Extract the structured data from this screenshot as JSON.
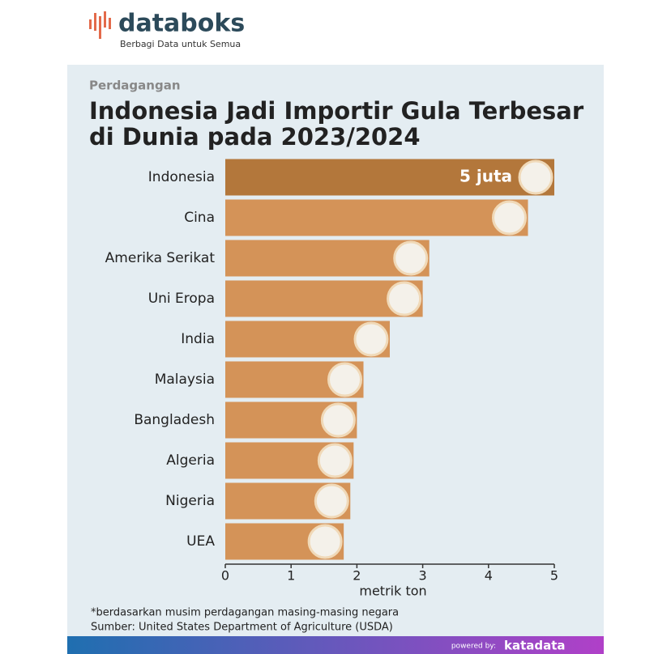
{
  "header": {
    "brand": "databoks",
    "tagline": "Berbagi Data untuk Semua"
  },
  "chart_data": {
    "type": "hbar",
    "subtitle": "Perdagangan",
    "title": [
      "Indonesia Jadi Importir Gula Terbesar",
      "di Dunia pada 2023/2024"
    ],
    "categories": [
      "Indonesia",
      "Cina",
      "Amerika Serikat",
      "Uni Eropa",
      "India",
      "Malaysia",
      "Bangladesh",
      "Algeria",
      "Nigeria",
      "UEA"
    ],
    "values": [
      5,
      4.6,
      3.1,
      3.0,
      2.5,
      2.1,
      2.0,
      1.95,
      1.9,
      1.8
    ],
    "value_labels": [
      "5 juta",
      null,
      null,
      null,
      null,
      null,
      null,
      null,
      null,
      null
    ],
    "colors": [
      "#b3773b",
      "#d49358",
      "#d49358",
      "#d49358",
      "#d49358",
      "#d49358",
      "#d49358",
      "#d49358",
      "#d49358",
      "#d49358"
    ],
    "xlim": [
      0,
      5
    ],
    "xticks": [
      0,
      1,
      2,
      3,
      4,
      5
    ],
    "xlabel": "metrik ton",
    "notes": [
      "*berdasarkan musim perdagangan masing-masing negara",
      "Sumber: United States Department of Agriculture (USDA)"
    ]
  },
  "footer": {
    "powered": "powered by:",
    "brand": "katadata"
  }
}
